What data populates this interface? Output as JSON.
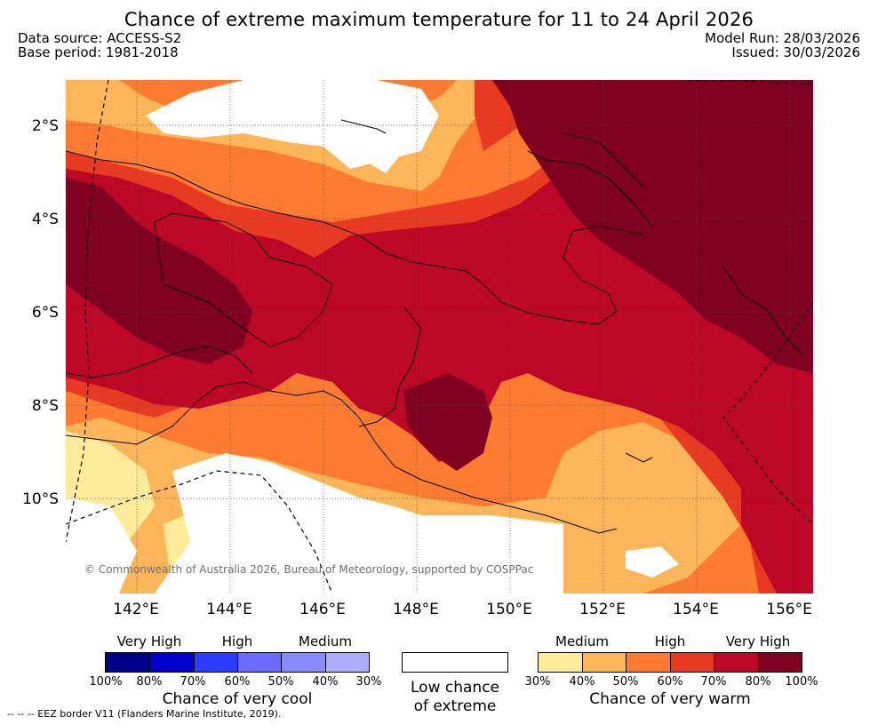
{
  "header": {
    "title": "Chance of extreme maximum temperature for 11 to 24 April 2026",
    "data_source": "Data source: ACCESS-S2",
    "base_period": "Base period: 1981-2018",
    "model_run": "Model Run: 28/03/2026",
    "issued": "Issued: 30/03/2026"
  },
  "map": {
    "lat_labels": [
      "2°S",
      "4°S",
      "6°S",
      "8°S",
      "10°S"
    ],
    "lon_labels": [
      "142°E",
      "144°E",
      "146°E",
      "148°E",
      "150°E",
      "152°E",
      "154°E",
      "156°E"
    ],
    "lon_range": [
      141,
      157
    ],
    "lat_range": [
      -11.8,
      -1
    ],
    "copyright": "© Commonwealth of Australia 2026, Bureau of Meteorology, supported by COSPPac"
  },
  "legend": {
    "cool": {
      "headers": [
        "Very High",
        "High",
        "Medium"
      ],
      "colors": [
        "#00008b",
        "#0000cd",
        "#2a3cff",
        "#6a6aff",
        "#8a8aff",
        "#adadff"
      ],
      "ticks": [
        "100%",
        "80%",
        "70%",
        "60%",
        "50%",
        "40%",
        "30%"
      ],
      "caption": "Chance of very cool"
    },
    "low": {
      "color": "#ffffff",
      "caption_line1": "Low chance",
      "caption_line2": "of extreme"
    },
    "warm": {
      "headers": [
        "Medium",
        "High",
        "Very High"
      ],
      "colors": [
        "#ffeb99",
        "#fdb55a",
        "#fc7b30",
        "#e83a22",
        "#bd0726",
        "#800020"
      ],
      "ticks": [
        "30%",
        "40%",
        "50%",
        "60%",
        "70%",
        "80%",
        "100%"
      ],
      "caption": "Chance of very warm"
    },
    "eez_note": "-- -- -- EEZ border V11 (Flanders Marine Institute, 2019)."
  }
}
